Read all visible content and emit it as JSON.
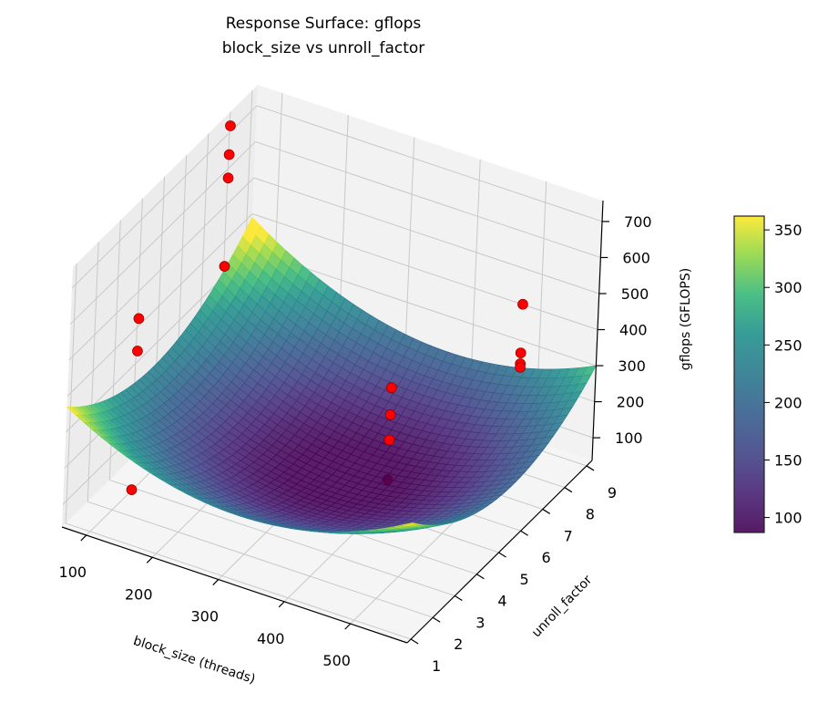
{
  "chart_data": {
    "type": "surface3d",
    "title": "Response Surface: gflops",
    "subtitle": "block_size vs unroll_factor",
    "xlabel": "block_size (threads)",
    "ylabel": "unroll_factor",
    "zlabel": "gflops (GFLOPS)",
    "xlim": [
      63,
      586
    ],
    "ylim": [
      0.83,
      9.25
    ],
    "zlim": [
      37,
      758
    ],
    "xticks": [
      100,
      200,
      300,
      400,
      500
    ],
    "yticks": [
      1,
      2,
      3,
      4,
      5,
      6,
      7,
      8,
      9
    ],
    "zticks": [
      100,
      200,
      300,
      400,
      500,
      600,
      700
    ],
    "grid": true,
    "colormap": "viridis",
    "colorbar": {
      "range": [
        87,
        362
      ],
      "ticks": [
        100,
        150,
        200,
        250,
        300,
        350
      ]
    },
    "surface_model": "quadratic fit, minimum near block_size 320 / unroll_factor 5, approx 90 GFLOPS",
    "points_color": "#ff0000",
    "points": [
      {
        "block_size": 64,
        "unroll_factor": 8,
        "gflops": 720
      },
      {
        "block_size": 64,
        "unroll_factor": 8,
        "gflops": 640
      },
      {
        "block_size": 64,
        "unroll_factor": 8,
        "gflops": 575
      },
      {
        "block_size": 64,
        "unroll_factor": 8,
        "gflops": 330
      },
      {
        "block_size": 128,
        "unroll_factor": 2,
        "gflops": 585
      },
      {
        "block_size": 128,
        "unroll_factor": 2,
        "gflops": 495
      },
      {
        "block_size": 128,
        "unroll_factor": 2,
        "gflops": 110
      },
      {
        "block_size": 384,
        "unroll_factor": 6,
        "gflops": 310
      },
      {
        "block_size": 384,
        "unroll_factor": 6,
        "gflops": 235
      },
      {
        "block_size": 384,
        "unroll_factor": 6,
        "gflops": 165
      },
      {
        "block_size": 384,
        "unroll_factor": 6,
        "gflops": 55
      },
      {
        "block_size": 512,
        "unroll_factor": 8,
        "gflops": 500
      },
      {
        "block_size": 512,
        "unroll_factor": 8,
        "gflops": 365
      },
      {
        "block_size": 512,
        "unroll_factor": 8,
        "gflops": 335
      },
      {
        "block_size": 512,
        "unroll_factor": 8,
        "gflops": 325
      }
    ]
  }
}
